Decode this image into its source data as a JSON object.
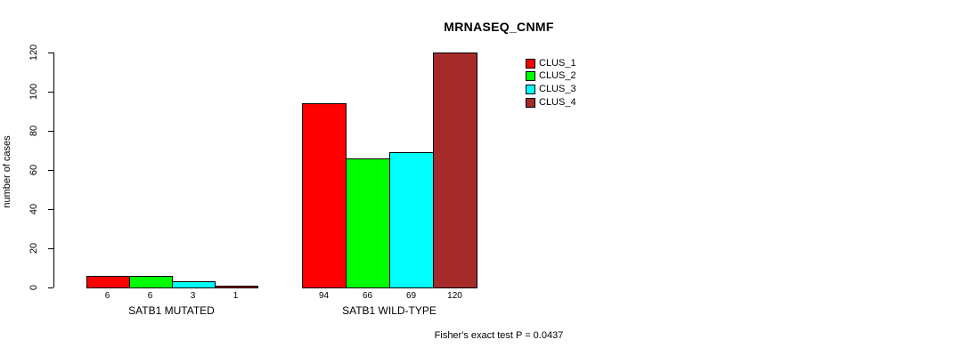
{
  "chart_data": {
    "type": "bar",
    "title": "MRNASEQ_CNMF",
    "ylabel": "number of cases",
    "xlabel": "",
    "ylim": [
      0,
      120
    ],
    "yticks": [
      0,
      20,
      40,
      60,
      80,
      100,
      120
    ],
    "grid": false,
    "legend_position": "inside-top-right",
    "bar_border_color": "#000000",
    "groups": [
      {
        "label": "SATB1 MUTATED",
        "values": [
          6,
          6,
          3,
          1
        ]
      },
      {
        "label": "SATB1 WILD-TYPE",
        "values": [
          94,
          66,
          69,
          120
        ]
      }
    ],
    "series": [
      {
        "name": "CLUS_1",
        "color": "#FF0000"
      },
      {
        "name": "CLUS_2",
        "color": "#00FF00"
      },
      {
        "name": "CLUS_3",
        "color": "#00FFFF"
      },
      {
        "name": "CLUS_4",
        "color": "#A52A2A"
      }
    ],
    "annotation": "Fisher's exact test P = 0.0437"
  }
}
